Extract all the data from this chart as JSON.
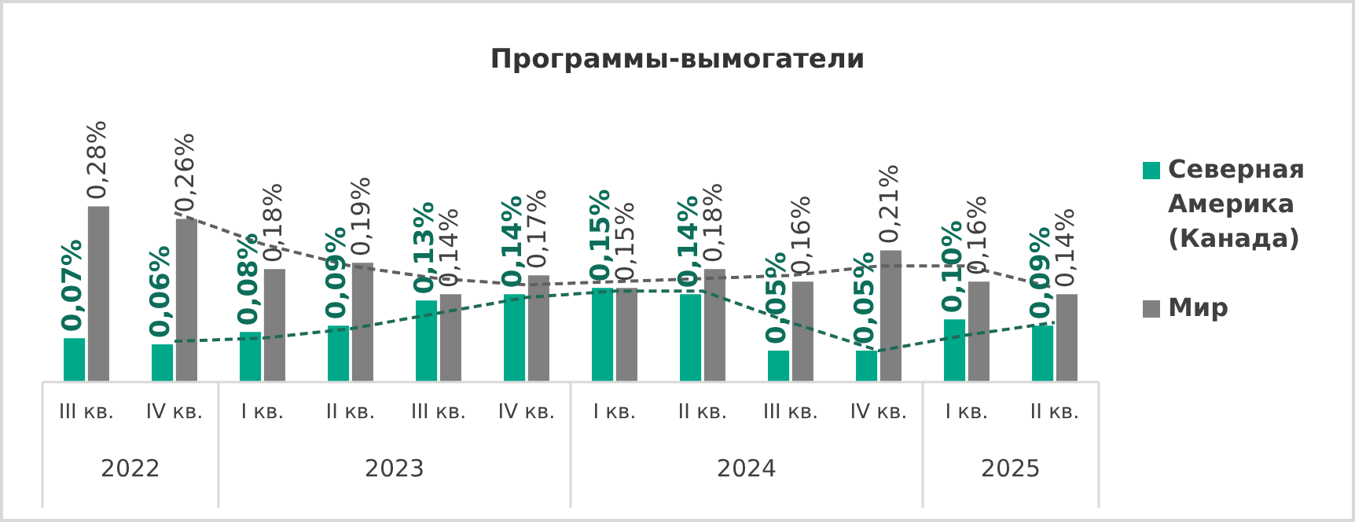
{
  "chart_data": {
    "type": "bar",
    "title": "Программы-вымогатели",
    "categories": [
      "III кв.",
      "IV кв.",
      "I кв.",
      "II кв.",
      "III кв.",
      "IV кв.",
      "I кв.",
      "II кв.",
      "III кв.",
      "IV кв.",
      "I кв.",
      "II кв."
    ],
    "series": [
      {
        "name": "Северная Америка (Канада)",
        "color": "#00a88a",
        "values": [
          0.07,
          0.06,
          0.08,
          0.09,
          0.13,
          0.14,
          0.15,
          0.14,
          0.05,
          0.05,
          0.1,
          0.09
        ],
        "value_labels": [
          "0,07%",
          "0,06%",
          "0,08%",
          "0,09%",
          "0,13%",
          "0,14%",
          "0,15%",
          "0,14%",
          "0,05%",
          "0,05%",
          "0,10%",
          "0,09%"
        ]
      },
      {
        "name": "Мир",
        "color": "#808080",
        "values": [
          0.28,
          0.26,
          0.18,
          0.19,
          0.14,
          0.17,
          0.15,
          0.18,
          0.16,
          0.21,
          0.16,
          0.14
        ],
        "value_labels": [
          "0,28%",
          "0,26%",
          "0,18%",
          "0,19%",
          "0,14%",
          "0,17%",
          "0,15%",
          "0,18%",
          "0,16%",
          "0,21%",
          "0,16%",
          "0,14%"
        ]
      },
      {
        "type": "line",
        "color": "#1d6b58",
        "line_style": "dashed",
        "values": [
          null,
          0.065,
          0.07,
          0.085,
          0.11,
          0.135,
          0.145,
          0.145,
          0.095,
          0.05,
          0.075,
          0.095
        ]
      },
      {
        "type": "line",
        "color": "#606060",
        "line_style": "dashed",
        "values": [
          null,
          0.27,
          0.22,
          0.185,
          0.165,
          0.155,
          0.16,
          0.165,
          0.17,
          0.185,
          0.185,
          0.15
        ]
      }
    ],
    "annotations": [
      "2022",
      "2023",
      "2024",
      "2025"
    ],
    "legend": "right",
    "marker": "none",
    "grid": false,
    "tick_labels": "x"
  }
}
